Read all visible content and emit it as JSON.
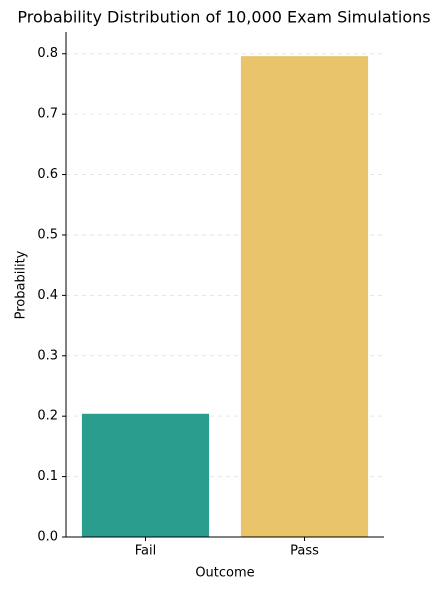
{
  "chart_data": {
    "type": "bar",
    "title": "Probability Distribution of 10,000 Exam Simulations",
    "xlabel": "Outcome",
    "ylabel": "Probability",
    "categories": [
      "Fail",
      "Pass"
    ],
    "values": [
      0.204,
      0.796
    ],
    "colors": [
      "#2a9d8f",
      "#e9c46a"
    ],
    "ylim": [
      0,
      0.836
    ],
    "yticks": [
      {
        "value": 0,
        "label": "0.0"
      },
      {
        "value": 0.1,
        "label": "0.1"
      },
      {
        "value": 0.2,
        "label": "0.2"
      },
      {
        "value": 0.3,
        "label": "0.3"
      },
      {
        "value": 0.4,
        "label": "0.4"
      },
      {
        "value": 0.5,
        "label": "0.5"
      },
      {
        "value": 0.6,
        "label": "0.6"
      },
      {
        "value": 0.7,
        "label": "0.7"
      },
      {
        "value": 0.8,
        "label": "0.8"
      }
    ],
    "grid": true
  }
}
